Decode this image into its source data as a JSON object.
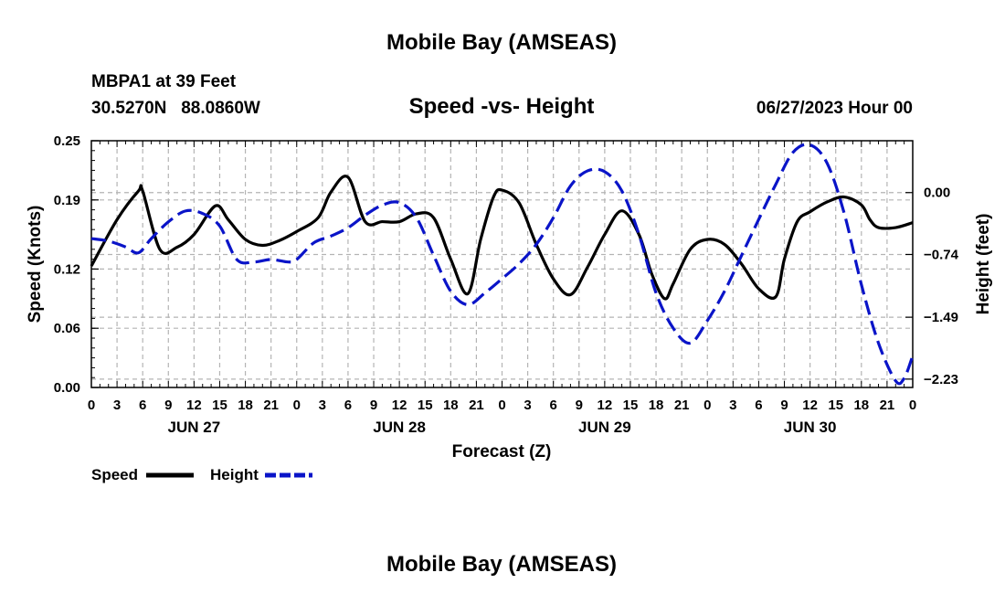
{
  "header": {
    "title": "Mobile Bay (AMSEAS)",
    "station": "MBPA1 at 39 Feet",
    "coords": "30.5270N   88.0860W",
    "subtitle": "Speed -vs- Height",
    "run_time": "06/27/2023 Hour 00"
  },
  "footer": {
    "title": "Mobile Bay (AMSEAS)"
  },
  "colors": {
    "speed": "#000000",
    "height": "#0a14c8",
    "grid": "#b4b4b4"
  },
  "chart_data": {
    "type": "line",
    "xlabel": "Forecast (Z)",
    "ylabel_left": "Speed (Knots)",
    "ylabel_right": "Height (feet)",
    "x_unit": "hours from 06/27/2023 00Z",
    "xlim": [
      0,
      96
    ],
    "x_tick_labels": [
      "0",
      "3",
      "6",
      "9",
      "12",
      "15",
      "18",
      "21",
      "0",
      "3",
      "6",
      "9",
      "12",
      "15",
      "18",
      "21",
      "0",
      "3",
      "6",
      "9",
      "12",
      "15",
      "18",
      "21",
      "0",
      "3",
      "6",
      "9",
      "12",
      "15",
      "18",
      "21",
      "0"
    ],
    "day_labels": [
      {
        "label": "JUN 27",
        "hour": 12
      },
      {
        "label": "JUN 28",
        "hour": 36
      },
      {
        "label": "JUN 29",
        "hour": 60
      },
      {
        "label": "JUN 30",
        "hour": 84
      }
    ],
    "left_axis": {
      "ylim": [
        0,
        0.25
      ],
      "ticks": [
        0.0,
        0.06,
        0.12,
        0.19,
        0.25
      ],
      "tick_labels": [
        "0.00",
        "0.06",
        "0.12",
        "0.19",
        "0.25"
      ]
    },
    "right_axis": {
      "ylim": [
        -2.33,
        0.62
      ],
      "ticks": [
        0.0,
        -0.74,
        -1.49,
        -2.23
      ],
      "tick_labels": [
        "0.00",
        "-0.74",
        "-1.49",
        "-2.23"
      ]
    },
    "series": [
      {
        "name": "Speed",
        "axis": "left",
        "style": "solid",
        "x": [
          0,
          3,
          5.5,
          6,
          8,
          10,
          12,
          14.5,
          16,
          18,
          20,
          22,
          24,
          26.5,
          28,
          30,
          32,
          34,
          36,
          38,
          40,
          42,
          44,
          45.5,
          47,
          48,
          50,
          52,
          54,
          56,
          58,
          60,
          62,
          64,
          65.5,
          67,
          68,
          70,
          72,
          74,
          76,
          78,
          80,
          81,
          82.5,
          84,
          86,
          88,
          90,
          91,
          92,
          94,
          96
        ],
        "values": [
          0.123,
          0.17,
          0.199,
          0.199,
          0.14,
          0.142,
          0.155,
          0.184,
          0.17,
          0.15,
          0.144,
          0.149,
          0.158,
          0.172,
          0.198,
          0.213,
          0.168,
          0.168,
          0.168,
          0.176,
          0.172,
          0.13,
          0.095,
          0.15,
          0.193,
          0.2,
          0.187,
          0.145,
          0.11,
          0.094,
          0.122,
          0.155,
          0.179,
          0.155,
          0.115,
          0.09,
          0.105,
          0.14,
          0.15,
          0.145,
          0.125,
          0.1,
          0.092,
          0.13,
          0.168,
          0.178,
          0.188,
          0.193,
          0.185,
          0.17,
          0.162,
          0.162,
          0.167
        ]
      },
      {
        "name": "Height",
        "axis": "right",
        "style": "dashed",
        "x": [
          0,
          2,
          4,
          5.5,
          7,
          9,
          11,
          13,
          15,
          17,
          19,
          21,
          23,
          24,
          26,
          28,
          30,
          32,
          34,
          36,
          38,
          40,
          42,
          44,
          46,
          48,
          50,
          52,
          54,
          56,
          58,
          60,
          62,
          64,
          66,
          68,
          70,
          72,
          74,
          76,
          78,
          80,
          82,
          84,
          86,
          88,
          90,
          92,
          94,
          95,
          96
        ],
        "values": [
          -0.55,
          -0.58,
          -0.65,
          -0.72,
          -0.55,
          -0.35,
          -0.22,
          -0.25,
          -0.4,
          -0.8,
          -0.83,
          -0.8,
          -0.83,
          -0.8,
          -0.6,
          -0.52,
          -0.42,
          -0.27,
          -0.15,
          -0.12,
          -0.3,
          -0.75,
          -1.18,
          -1.34,
          -1.2,
          -1.03,
          -0.85,
          -0.62,
          -0.3,
          0.08,
          0.26,
          0.25,
          0.02,
          -0.5,
          -1.2,
          -1.62,
          -1.8,
          -1.53,
          -1.18,
          -0.75,
          -0.32,
          0.1,
          0.48,
          0.57,
          0.35,
          -0.25,
          -1.1,
          -1.8,
          -2.25,
          -2.22,
          -1.95
        ]
      }
    ],
    "legend": [
      {
        "name": "Speed",
        "style": "solid"
      },
      {
        "name": "Height",
        "style": "dashed"
      }
    ],
    "legend_position": "bottom-left",
    "grid": true
  }
}
